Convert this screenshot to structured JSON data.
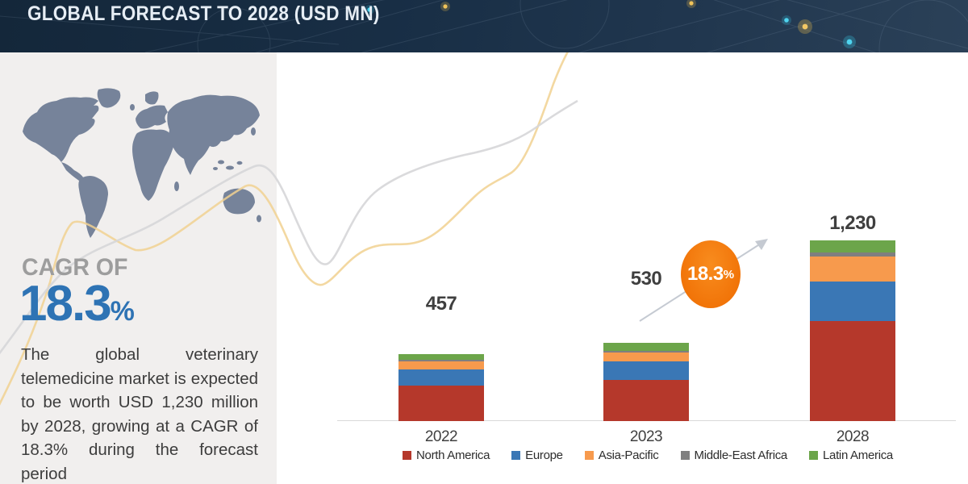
{
  "header": {
    "title": "GLOBAL FORECAST TO 2028 (USD MN)"
  },
  "sidebar": {
    "cagr_label": "CAGR OF",
    "cagr_value": "18.3",
    "cagr_unit": "%",
    "description": "The global veterinary telemedicine market is expected to be worth USD 1,230 million by 2028, growing at a CAGR of 18.3% during the forecast period"
  },
  "chart_data": {
    "type": "bar",
    "stacked": true,
    "title": "GLOBAL FORECAST TO 2028 (USD MN)",
    "xlabel": "",
    "ylabel": "",
    "grid": false,
    "legend_position": "bottom",
    "categories": [
      "2022",
      "2023",
      "2028"
    ],
    "totals": [
      457,
      530,
      1230
    ],
    "totals_label": [
      "457",
      "530",
      "1,230"
    ],
    "series": [
      {
        "name": "North America",
        "color": "#b5382b",
        "values": [
          240,
          280,
          682
        ]
      },
      {
        "name": "Europe",
        "color": "#3a77b5",
        "values": [
          110,
          125,
          269
        ]
      },
      {
        "name": "Asia-Pacific",
        "color": "#f79a4d",
        "values": [
          55,
          62,
          170
        ]
      },
      {
        "name": "Middle-East Africa",
        "color": "#7f7f7f",
        "values": [
          10,
          12,
          27
        ]
      },
      {
        "name": "Latin America",
        "color": "#6ca54a",
        "values": [
          42,
          51,
          82
        ]
      }
    ],
    "callout": {
      "text": "18.3",
      "unit": "%",
      "color": "#f2760a"
    },
    "axis_color": "#d9d9d9"
  }
}
